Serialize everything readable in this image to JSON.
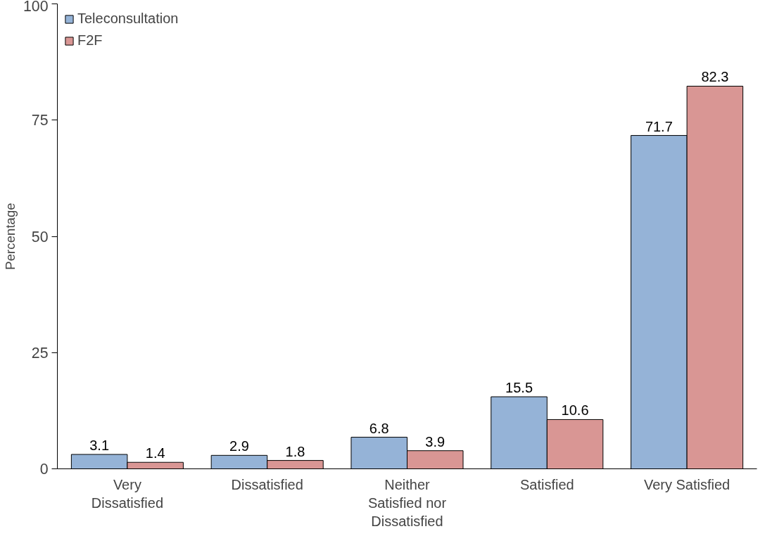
{
  "chart_data": {
    "type": "bar",
    "ylabel": "Percentage",
    "categories": [
      "Very Dissatisfied",
      "Dissatisfied",
      "Neither Satisfied nor Dissatisfied",
      "Satisfied",
      "Very Satisfied"
    ],
    "series": [
      {
        "name": "Teleconsultation",
        "color": "#95b3d7",
        "values": [
          3.1,
          2.9,
          6.8,
          15.5,
          71.7
        ]
      },
      {
        "name": "F2F",
        "color": "#d99694",
        "values": [
          1.4,
          1.8,
          3.9,
          10.6,
          82.3
        ]
      }
    ],
    "ylim": [
      0,
      100
    ],
    "yticks": [
      0,
      25,
      50,
      75,
      100
    ],
    "grid": false,
    "legend": "top left",
    "data_labels": true
  }
}
